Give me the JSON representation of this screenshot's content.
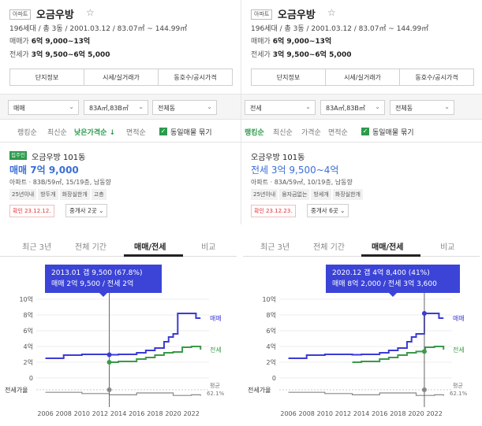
{
  "left": {
    "badge": "아파트",
    "title": "오금우방",
    "star": "☆",
    "meta": "196세대 / 총 3동 / 2001.03.12 / 83.07㎡ ~ 144.99㎡",
    "sale_label": "매매가",
    "sale_value": "6억 9,000~13억",
    "jeonse_label": "전세가",
    "jeonse_value": "3억 9,500~6억 5,000",
    "tabs": [
      "단지정보",
      "시세/실거래가",
      "동호수/공시가격"
    ],
    "filters": [
      "매매",
      "83A㎡,83B㎡",
      "전체동"
    ],
    "sort": [
      "랭킹순",
      "최신순",
      "낮은가격순 ↓",
      "면적순"
    ],
    "same_listing": "동일매물 묶기",
    "card": {
      "tag": "집주인",
      "name": "오금우방 101동",
      "price": "매매 7억 9,000",
      "spec": "아파트 · 83B/59㎡, 15/19층, 남동향",
      "chips": [
        "25년이내",
        "방두개",
        "화장실한개",
        "고층"
      ],
      "confirm": "확인 23.12.12.",
      "agent": "중개사 2곳"
    }
  },
  "right": {
    "badge": "아파트",
    "title": "오금우방",
    "star": "☆",
    "meta": "196세대 / 총 3동 / 2001.03.12 / 83.07㎡ ~ 144.99㎡",
    "sale_label": "매매가",
    "sale_value": "6억 9,000~13억",
    "jeonse_label": "전세가",
    "jeonse_value": "3억 9,500~6억 5,000",
    "tabs": [
      "단지정보",
      "시세/실거래가",
      "동호수/공시가격"
    ],
    "filters": [
      "전세",
      "83A㎡,83B㎡",
      "전체동"
    ],
    "sort": [
      "랭킹순",
      "최신순",
      "가격순",
      "면적순"
    ],
    "same_listing": "동일매물 묶기",
    "card": {
      "name": "오금우방 101동",
      "price": "전세 3억 9,500~4억",
      "spec": "아파트 · 83A/59㎡, 10/19층, 남동향",
      "chips": [
        "25년이내",
        "융자금없는",
        "방세개",
        "화장실한개"
      ],
      "confirm": "확인 23.12.23.",
      "agent": "중개사 6곳"
    }
  },
  "charts": [
    {
      "tabs": [
        "최근 3년",
        "전체 기간",
        "매매/전세",
        "비교"
      ],
      "active_tab": 2,
      "tooltip_line1": "2013.01  갭 9,500 (67.8%)",
      "tooltip_line2": "매매 2억 9,500 / 전세 2억",
      "y_ticks": [
        "10억",
        "8억",
        "6억",
        "4억",
        "2억",
        "0"
      ],
      "x_ticks": [
        "2006",
        "2008",
        "2010",
        "2012",
        "2014",
        "2016",
        "2018",
        "2020",
        "2022"
      ],
      "label_sale": "매매",
      "label_jeonse": "전세",
      "ratio_label": "전세가율",
      "avg_label": "평균",
      "avg_value": "62.1%",
      "colors": {
        "sale": "#3b3bd6",
        "jeonse": "#3a9a4a",
        "ratio": "#888888"
      }
    },
    {
      "tabs": [
        "최근 3년",
        "전체 기간",
        "매매/전세",
        "비교"
      ],
      "active_tab": 2,
      "tooltip_line1": "2020.12  갭 4억 8,400 (41%)",
      "tooltip_line2": "매매 8억 2,000 / 전세 3억 3,600",
      "y_ticks": [
        "10억",
        "8억",
        "6억",
        "4억",
        "2억",
        "0"
      ],
      "x_ticks": [
        "2006",
        "2008",
        "2010",
        "2012",
        "2014",
        "2016",
        "2018",
        "2020",
        "2022"
      ],
      "label_sale": "매매",
      "label_jeonse": "전세",
      "ratio_label": "전세가율",
      "avg_label": "평균",
      "avg_value": "62.1%",
      "colors": {
        "sale": "#3b3bd6",
        "jeonse": "#3a9a4a",
        "ratio": "#888888"
      }
    }
  ],
  "chart_data": [
    {
      "type": "line",
      "title": "",
      "xlabel": "",
      "ylabel": "",
      "ylim": [
        0,
        10
      ],
      "series": [
        {
          "name": "매매",
          "x": [
            2006,
            2008,
            2010,
            2012,
            2013,
            2014,
            2016,
            2017,
            2018,
            2019,
            2019.5,
            2020,
            2020.5,
            2022,
            2022.5,
            2023
          ],
          "values": [
            2.5,
            2.9,
            3.0,
            3.0,
            2.95,
            3.0,
            3.2,
            3.5,
            3.8,
            4.6,
            5.2,
            5.6,
            8.2,
            8.2,
            7.6,
            7.6
          ]
        },
        {
          "name": "전세",
          "x": [
            2013,
            2014,
            2016,
            2017,
            2018,
            2019,
            2020,
            2021,
            2022,
            2023
          ],
          "values": [
            2.0,
            2.1,
            2.4,
            2.6,
            2.9,
            3.2,
            3.3,
            3.9,
            4.0,
            3.6
          ]
        }
      ],
      "ratio_series": {
        "x": [
          2006,
          2010,
          2013,
          2016,
          2020,
          2022,
          2023
        ],
        "values": [
          -0.8,
          -1.2,
          -1.6,
          -1.0,
          -1.8,
          -1.6,
          -1.9
        ]
      },
      "cursor": {
        "x": 2013.0,
        "sale": 2.95,
        "jeonse": 2.0
      }
    },
    {
      "type": "line",
      "title": "",
      "xlabel": "",
      "ylabel": "",
      "ylim": [
        0,
        10
      ],
      "series": [
        {
          "name": "매매",
          "x": [
            2006,
            2008,
            2010,
            2012,
            2013,
            2014,
            2016,
            2017,
            2018,
            2019,
            2019.5,
            2020,
            2020.9,
            2022,
            2022.5,
            2023
          ],
          "values": [
            2.5,
            2.9,
            3.0,
            3.0,
            2.95,
            3.0,
            3.2,
            3.5,
            3.8,
            4.6,
            5.2,
            5.6,
            8.2,
            8.2,
            7.6,
            7.6
          ]
        },
        {
          "name": "전세",
          "x": [
            2013,
            2014,
            2016,
            2017,
            2018,
            2019,
            2020,
            2021,
            2022,
            2023
          ],
          "values": [
            2.0,
            2.1,
            2.4,
            2.6,
            2.9,
            3.2,
            3.36,
            3.9,
            4.0,
            3.6
          ]
        }
      ],
      "ratio_series": {
        "x": [
          2006,
          2010,
          2013,
          2016,
          2020,
          2022,
          2023
        ],
        "values": [
          -0.8,
          -1.2,
          -1.6,
          -1.0,
          -1.8,
          -1.6,
          -1.9
        ]
      },
      "cursor": {
        "x": 2020.9,
        "sale": 8.2,
        "jeonse": 3.36
      }
    }
  ]
}
